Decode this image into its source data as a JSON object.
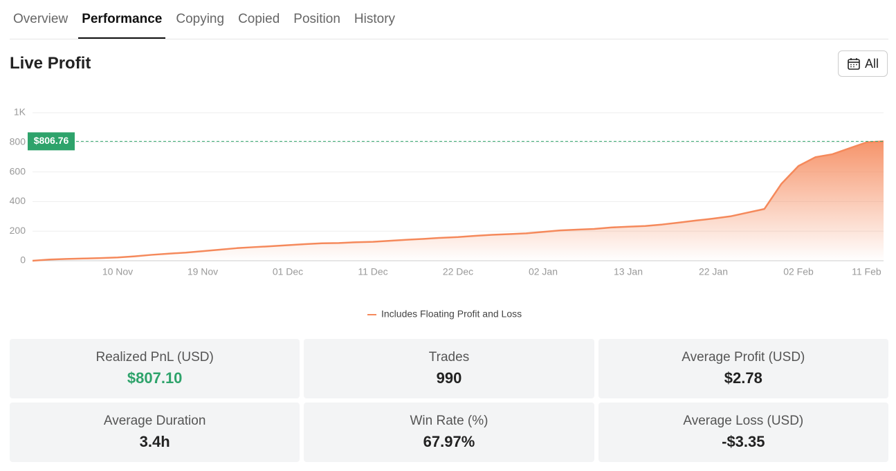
{
  "tabs": [
    {
      "label": "Overview",
      "active": false
    },
    {
      "label": "Performance",
      "active": true
    },
    {
      "label": "Copying",
      "active": false
    },
    {
      "label": "Copied",
      "active": false
    },
    {
      "label": "Position",
      "active": false
    },
    {
      "label": "History",
      "active": false
    }
  ],
  "title": "Live Profit",
  "date_filter": "All",
  "chart_data": {
    "type": "area",
    "categories": [
      null,
      null,
      null,
      null,
      null,
      "10 Nov",
      null,
      null,
      null,
      null,
      "19 Nov",
      null,
      null,
      null,
      null,
      "01 Dec",
      null,
      null,
      null,
      null,
      "11 Dec",
      null,
      null,
      null,
      null,
      "22 Dec",
      null,
      null,
      null,
      null,
      "02 Jan",
      null,
      null,
      null,
      null,
      "13 Jan",
      null,
      null,
      null,
      null,
      "22 Jan",
      null,
      null,
      null,
      null,
      "02 Feb",
      null,
      null,
      null,
      "11 Feb",
      null
    ],
    "series": [
      {
        "name": "Includes Floating Profit and Loss",
        "color": "#f5895b",
        "values": [
          0,
          8,
          12,
          15,
          18,
          22,
          30,
          40,
          48,
          55,
          65,
          75,
          85,
          92,
          98,
          105,
          112,
          118,
          120,
          125,
          128,
          135,
          142,
          148,
          155,
          160,
          168,
          175,
          180,
          185,
          195,
          205,
          210,
          215,
          225,
          230,
          235,
          245,
          258,
          272,
          285,
          300,
          325,
          350,
          520,
          640,
          700,
          720,
          760,
          800,
          806.76
        ]
      }
    ],
    "ylim": [
      0,
      1000
    ],
    "yticks": [
      0,
      200,
      400,
      600,
      800,
      {
        "value": 1000,
        "label": "1K"
      }
    ],
    "grid": true,
    "reference_line": {
      "value": 806.76,
      "label": "$806.76",
      "color": "#2ea36b"
    }
  },
  "stats": [
    {
      "label": "Realized PnL (USD)",
      "value": "$807.10",
      "color": "#2ea36b"
    },
    {
      "label": "Trades",
      "value": "990",
      "color": "#222222"
    },
    {
      "label": "Average Profit (USD)",
      "value": "$2.78",
      "color": "#222222"
    },
    {
      "label": "Average Duration",
      "value": "3.4h",
      "color": "#222222"
    },
    {
      "label": "Win Rate (%)",
      "value": "67.97%",
      "color": "#222222"
    },
    {
      "label": "Average Loss (USD)",
      "value": "-$3.35",
      "color": "#222222"
    }
  ]
}
